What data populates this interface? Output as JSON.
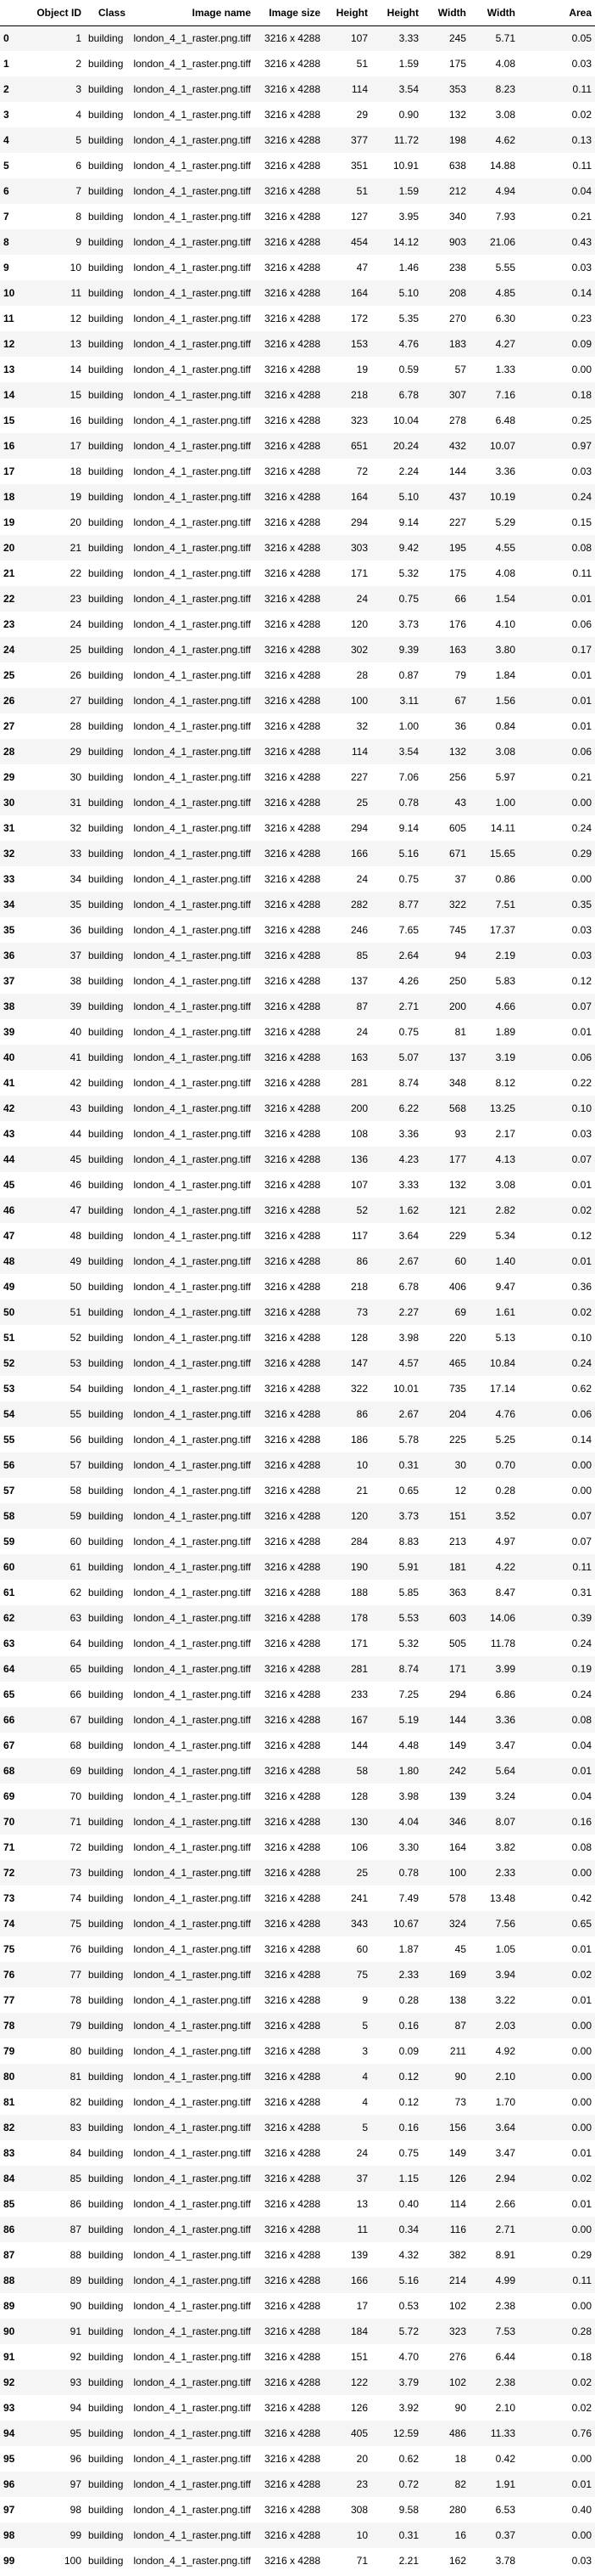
{
  "columns": [
    "",
    "Object ID",
    "Class",
    "Image name",
    "Image size",
    "Height",
    "Height",
    "Width",
    "Width",
    "Area"
  ],
  "rows": [
    [
      0,
      1,
      "building",
      "london_4_1_raster.png.tiff",
      "3216 x 4288",
      107,
      "3.33",
      245,
      "5.71",
      "0.05"
    ],
    [
      1,
      2,
      "building",
      "london_4_1_raster.png.tiff",
      "3216 x 4288",
      51,
      "1.59",
      175,
      "4.08",
      "0.03"
    ],
    [
      2,
      3,
      "building",
      "london_4_1_raster.png.tiff",
      "3216 x 4288",
      114,
      "3.54",
      353,
      "8.23",
      "0.11"
    ],
    [
      3,
      4,
      "building",
      "london_4_1_raster.png.tiff",
      "3216 x 4288",
      29,
      "0.90",
      132,
      "3.08",
      "0.02"
    ],
    [
      4,
      5,
      "building",
      "london_4_1_raster.png.tiff",
      "3216 x 4288",
      377,
      "11.72",
      198,
      "4.62",
      "0.13"
    ],
    [
      5,
      6,
      "building",
      "london_4_1_raster.png.tiff",
      "3216 x 4288",
      351,
      "10.91",
      638,
      "14.88",
      "0.11"
    ],
    [
      6,
      7,
      "building",
      "london_4_1_raster.png.tiff",
      "3216 x 4288",
      51,
      "1.59",
      212,
      "4.94",
      "0.04"
    ],
    [
      7,
      8,
      "building",
      "london_4_1_raster.png.tiff",
      "3216 x 4288",
      127,
      "3.95",
      340,
      "7.93",
      "0.21"
    ],
    [
      8,
      9,
      "building",
      "london_4_1_raster.png.tiff",
      "3216 x 4288",
      454,
      "14.12",
      903,
      "21.06",
      "0.43"
    ],
    [
      9,
      10,
      "building",
      "london_4_1_raster.png.tiff",
      "3216 x 4288",
      47,
      "1.46",
      238,
      "5.55",
      "0.03"
    ],
    [
      10,
      11,
      "building",
      "london_4_1_raster.png.tiff",
      "3216 x 4288",
      164,
      "5.10",
      208,
      "4.85",
      "0.14"
    ],
    [
      11,
      12,
      "building",
      "london_4_1_raster.png.tiff",
      "3216 x 4288",
      172,
      "5.35",
      270,
      "6.30",
      "0.23"
    ],
    [
      12,
      13,
      "building",
      "london_4_1_raster.png.tiff",
      "3216 x 4288",
      153,
      "4.76",
      183,
      "4.27",
      "0.09"
    ],
    [
      13,
      14,
      "building",
      "london_4_1_raster.png.tiff",
      "3216 x 4288",
      19,
      "0.59",
      57,
      "1.33",
      "0.00"
    ],
    [
      14,
      15,
      "building",
      "london_4_1_raster.png.tiff",
      "3216 x 4288",
      218,
      "6.78",
      307,
      "7.16",
      "0.18"
    ],
    [
      15,
      16,
      "building",
      "london_4_1_raster.png.tiff",
      "3216 x 4288",
      323,
      "10.04",
      278,
      "6.48",
      "0.25"
    ],
    [
      16,
      17,
      "building",
      "london_4_1_raster.png.tiff",
      "3216 x 4288",
      651,
      "20.24",
      432,
      "10.07",
      "0.97"
    ],
    [
      17,
      18,
      "building",
      "london_4_1_raster.png.tiff",
      "3216 x 4288",
      72,
      "2.24",
      144,
      "3.36",
      "0.03"
    ],
    [
      18,
      19,
      "building",
      "london_4_1_raster.png.tiff",
      "3216 x 4288",
      164,
      "5.10",
      437,
      "10.19",
      "0.24"
    ],
    [
      19,
      20,
      "building",
      "london_4_1_raster.png.tiff",
      "3216 x 4288",
      294,
      "9.14",
      227,
      "5.29",
      "0.15"
    ],
    [
      20,
      21,
      "building",
      "london_4_1_raster.png.tiff",
      "3216 x 4288",
      303,
      "9.42",
      195,
      "4.55",
      "0.08"
    ],
    [
      21,
      22,
      "building",
      "london_4_1_raster.png.tiff",
      "3216 x 4288",
      171,
      "5.32",
      175,
      "4.08",
      "0.11"
    ],
    [
      22,
      23,
      "building",
      "london_4_1_raster.png.tiff",
      "3216 x 4288",
      24,
      "0.75",
      66,
      "1.54",
      "0.01"
    ],
    [
      23,
      24,
      "building",
      "london_4_1_raster.png.tiff",
      "3216 x 4288",
      120,
      "3.73",
      176,
      "4.10",
      "0.06"
    ],
    [
      24,
      25,
      "building",
      "london_4_1_raster.png.tiff",
      "3216 x 4288",
      302,
      "9.39",
      163,
      "3.80",
      "0.17"
    ],
    [
      25,
      26,
      "building",
      "london_4_1_raster.png.tiff",
      "3216 x 4288",
      28,
      "0.87",
      79,
      "1.84",
      "0.01"
    ],
    [
      26,
      27,
      "building",
      "london_4_1_raster.png.tiff",
      "3216 x 4288",
      100,
      "3.11",
      67,
      "1.56",
      "0.01"
    ],
    [
      27,
      28,
      "building",
      "london_4_1_raster.png.tiff",
      "3216 x 4288",
      32,
      "1.00",
      36,
      "0.84",
      "0.01"
    ],
    [
      28,
      29,
      "building",
      "london_4_1_raster.png.tiff",
      "3216 x 4288",
      114,
      "3.54",
      132,
      "3.08",
      "0.06"
    ],
    [
      29,
      30,
      "building",
      "london_4_1_raster.png.tiff",
      "3216 x 4288",
      227,
      "7.06",
      256,
      "5.97",
      "0.21"
    ],
    [
      30,
      31,
      "building",
      "london_4_1_raster.png.tiff",
      "3216 x 4288",
      25,
      "0.78",
      43,
      "1.00",
      "0.00"
    ],
    [
      31,
      32,
      "building",
      "london_4_1_raster.png.tiff",
      "3216 x 4288",
      294,
      "9.14",
      605,
      "14.11",
      "0.24"
    ],
    [
      32,
      33,
      "building",
      "london_4_1_raster.png.tiff",
      "3216 x 4288",
      166,
      "5.16",
      671,
      "15.65",
      "0.29"
    ],
    [
      33,
      34,
      "building",
      "london_4_1_raster.png.tiff",
      "3216 x 4288",
      24,
      "0.75",
      37,
      "0.86",
      "0.00"
    ],
    [
      34,
      35,
      "building",
      "london_4_1_raster.png.tiff",
      "3216 x 4288",
      282,
      "8.77",
      322,
      "7.51",
      "0.35"
    ],
    [
      35,
      36,
      "building",
      "london_4_1_raster.png.tiff",
      "3216 x 4288",
      246,
      "7.65",
      745,
      "17.37",
      "0.03"
    ],
    [
      36,
      37,
      "building",
      "london_4_1_raster.png.tiff",
      "3216 x 4288",
      85,
      "2.64",
      94,
      "2.19",
      "0.03"
    ],
    [
      37,
      38,
      "building",
      "london_4_1_raster.png.tiff",
      "3216 x 4288",
      137,
      "4.26",
      250,
      "5.83",
      "0.12"
    ],
    [
      38,
      39,
      "building",
      "london_4_1_raster.png.tiff",
      "3216 x 4288",
      87,
      "2.71",
      200,
      "4.66",
      "0.07"
    ],
    [
      39,
      40,
      "building",
      "london_4_1_raster.png.tiff",
      "3216 x 4288",
      24,
      "0.75",
      81,
      "1.89",
      "0.01"
    ],
    [
      40,
      41,
      "building",
      "london_4_1_raster.png.tiff",
      "3216 x 4288",
      163,
      "5.07",
      137,
      "3.19",
      "0.06"
    ],
    [
      41,
      42,
      "building",
      "london_4_1_raster.png.tiff",
      "3216 x 4288",
      281,
      "8.74",
      348,
      "8.12",
      "0.22"
    ],
    [
      42,
      43,
      "building",
      "london_4_1_raster.png.tiff",
      "3216 x 4288",
      200,
      "6.22",
      568,
      "13.25",
      "0.10"
    ],
    [
      43,
      44,
      "building",
      "london_4_1_raster.png.tiff",
      "3216 x 4288",
      108,
      "3.36",
      93,
      "2.17",
      "0.03"
    ],
    [
      44,
      45,
      "building",
      "london_4_1_raster.png.tiff",
      "3216 x 4288",
      136,
      "4.23",
      177,
      "4.13",
      "0.07"
    ],
    [
      45,
      46,
      "building",
      "london_4_1_raster.png.tiff",
      "3216 x 4288",
      107,
      "3.33",
      132,
      "3.08",
      "0.01"
    ],
    [
      46,
      47,
      "building",
      "london_4_1_raster.png.tiff",
      "3216 x 4288",
      52,
      "1.62",
      121,
      "2.82",
      "0.02"
    ],
    [
      47,
      48,
      "building",
      "london_4_1_raster.png.tiff",
      "3216 x 4288",
      117,
      "3.64",
      229,
      "5.34",
      "0.12"
    ],
    [
      48,
      49,
      "building",
      "london_4_1_raster.png.tiff",
      "3216 x 4288",
      86,
      "2.67",
      60,
      "1.40",
      "0.01"
    ],
    [
      49,
      50,
      "building",
      "london_4_1_raster.png.tiff",
      "3216 x 4288",
      218,
      "6.78",
      406,
      "9.47",
      "0.36"
    ],
    [
      50,
      51,
      "building",
      "london_4_1_raster.png.tiff",
      "3216 x 4288",
      73,
      "2.27",
      69,
      "1.61",
      "0.02"
    ],
    [
      51,
      52,
      "building",
      "london_4_1_raster.png.tiff",
      "3216 x 4288",
      128,
      "3.98",
      220,
      "5.13",
      "0.10"
    ],
    [
      52,
      53,
      "building",
      "london_4_1_raster.png.tiff",
      "3216 x 4288",
      147,
      "4.57",
      465,
      "10.84",
      "0.24"
    ],
    [
      53,
      54,
      "building",
      "london_4_1_raster.png.tiff",
      "3216 x 4288",
      322,
      "10.01",
      735,
      "17.14",
      "0.62"
    ],
    [
      54,
      55,
      "building",
      "london_4_1_raster.png.tiff",
      "3216 x 4288",
      86,
      "2.67",
      204,
      "4.76",
      "0.06"
    ],
    [
      55,
      56,
      "building",
      "london_4_1_raster.png.tiff",
      "3216 x 4288",
      186,
      "5.78",
      225,
      "5.25",
      "0.14"
    ],
    [
      56,
      57,
      "building",
      "london_4_1_raster.png.tiff",
      "3216 x 4288",
      10,
      "0.31",
      30,
      "0.70",
      "0.00"
    ],
    [
      57,
      58,
      "building",
      "london_4_1_raster.png.tiff",
      "3216 x 4288",
      21,
      "0.65",
      12,
      "0.28",
      "0.00"
    ],
    [
      58,
      59,
      "building",
      "london_4_1_raster.png.tiff",
      "3216 x 4288",
      120,
      "3.73",
      151,
      "3.52",
      "0.07"
    ],
    [
      59,
      60,
      "building",
      "london_4_1_raster.png.tiff",
      "3216 x 4288",
      284,
      "8.83",
      213,
      "4.97",
      "0.07"
    ],
    [
      60,
      61,
      "building",
      "london_4_1_raster.png.tiff",
      "3216 x 4288",
      190,
      "5.91",
      181,
      "4.22",
      "0.11"
    ],
    [
      61,
      62,
      "building",
      "london_4_1_raster.png.tiff",
      "3216 x 4288",
      188,
      "5.85",
      363,
      "8.47",
      "0.31"
    ],
    [
      62,
      63,
      "building",
      "london_4_1_raster.png.tiff",
      "3216 x 4288",
      178,
      "5.53",
      603,
      "14.06",
      "0.39"
    ],
    [
      63,
      64,
      "building",
      "london_4_1_raster.png.tiff",
      "3216 x 4288",
      171,
      "5.32",
      505,
      "11.78",
      "0.24"
    ],
    [
      64,
      65,
      "building",
      "london_4_1_raster.png.tiff",
      "3216 x 4288",
      281,
      "8.74",
      171,
      "3.99",
      "0.19"
    ],
    [
      65,
      66,
      "building",
      "london_4_1_raster.png.tiff",
      "3216 x 4288",
      233,
      "7.25",
      294,
      "6.86",
      "0.24"
    ],
    [
      66,
      67,
      "building",
      "london_4_1_raster.png.tiff",
      "3216 x 4288",
      167,
      "5.19",
      144,
      "3.36",
      "0.08"
    ],
    [
      67,
      68,
      "building",
      "london_4_1_raster.png.tiff",
      "3216 x 4288",
      144,
      "4.48",
      149,
      "3.47",
      "0.04"
    ],
    [
      68,
      69,
      "building",
      "london_4_1_raster.png.tiff",
      "3216 x 4288",
      58,
      "1.80",
      242,
      "5.64",
      "0.01"
    ],
    [
      69,
      70,
      "building",
      "london_4_1_raster.png.tiff",
      "3216 x 4288",
      128,
      "3.98",
      139,
      "3.24",
      "0.04"
    ],
    [
      70,
      71,
      "building",
      "london_4_1_raster.png.tiff",
      "3216 x 4288",
      130,
      "4.04",
      346,
      "8.07",
      "0.16"
    ],
    [
      71,
      72,
      "building",
      "london_4_1_raster.png.tiff",
      "3216 x 4288",
      106,
      "3.30",
      164,
      "3.82",
      "0.08"
    ],
    [
      72,
      73,
      "building",
      "london_4_1_raster.png.tiff",
      "3216 x 4288",
      25,
      "0.78",
      100,
      "2.33",
      "0.00"
    ],
    [
      73,
      74,
      "building",
      "london_4_1_raster.png.tiff",
      "3216 x 4288",
      241,
      "7.49",
      578,
      "13.48",
      "0.42"
    ],
    [
      74,
      75,
      "building",
      "london_4_1_raster.png.tiff",
      "3216 x 4288",
      343,
      "10.67",
      324,
      "7.56",
      "0.65"
    ],
    [
      75,
      76,
      "building",
      "london_4_1_raster.png.tiff",
      "3216 x 4288",
      60,
      "1.87",
      45,
      "1.05",
      "0.01"
    ],
    [
      76,
      77,
      "building",
      "london_4_1_raster.png.tiff",
      "3216 x 4288",
      75,
      "2.33",
      169,
      "3.94",
      "0.02"
    ],
    [
      77,
      78,
      "building",
      "london_4_1_raster.png.tiff",
      "3216 x 4288",
      9,
      "0.28",
      138,
      "3.22",
      "0.01"
    ],
    [
      78,
      79,
      "building",
      "london_4_1_raster.png.tiff",
      "3216 x 4288",
      5,
      "0.16",
      87,
      "2.03",
      "0.00"
    ],
    [
      79,
      80,
      "building",
      "london_4_1_raster.png.tiff",
      "3216 x 4288",
      3,
      "0.09",
      211,
      "4.92",
      "0.00"
    ],
    [
      80,
      81,
      "building",
      "london_4_1_raster.png.tiff",
      "3216 x 4288",
      4,
      "0.12",
      90,
      "2.10",
      "0.00"
    ],
    [
      81,
      82,
      "building",
      "london_4_1_raster.png.tiff",
      "3216 x 4288",
      4,
      "0.12",
      73,
      "1.70",
      "0.00"
    ],
    [
      82,
      83,
      "building",
      "london_4_1_raster.png.tiff",
      "3216 x 4288",
      5,
      "0.16",
      156,
      "3.64",
      "0.00"
    ],
    [
      83,
      84,
      "building",
      "london_4_1_raster.png.tiff",
      "3216 x 4288",
      24,
      "0.75",
      149,
      "3.47",
      "0.01"
    ],
    [
      84,
      85,
      "building",
      "london_4_1_raster.png.tiff",
      "3216 x 4288",
      37,
      "1.15",
      126,
      "2.94",
      "0.02"
    ],
    [
      85,
      86,
      "building",
      "london_4_1_raster.png.tiff",
      "3216 x 4288",
      13,
      "0.40",
      114,
      "2.66",
      "0.01"
    ],
    [
      86,
      87,
      "building",
      "london_4_1_raster.png.tiff",
      "3216 x 4288",
      11,
      "0.34",
      116,
      "2.71",
      "0.00"
    ],
    [
      87,
      88,
      "building",
      "london_4_1_raster.png.tiff",
      "3216 x 4288",
      139,
      "4.32",
      382,
      "8.91",
      "0.29"
    ],
    [
      88,
      89,
      "building",
      "london_4_1_raster.png.tiff",
      "3216 x 4288",
      166,
      "5.16",
      214,
      "4.99",
      "0.11"
    ],
    [
      89,
      90,
      "building",
      "london_4_1_raster.png.tiff",
      "3216 x 4288",
      17,
      "0.53",
      102,
      "2.38",
      "0.00"
    ],
    [
      90,
      91,
      "building",
      "london_4_1_raster.png.tiff",
      "3216 x 4288",
      184,
      "5.72",
      323,
      "7.53",
      "0.28"
    ],
    [
      91,
      92,
      "building",
      "london_4_1_raster.png.tiff",
      "3216 x 4288",
      151,
      "4.70",
      276,
      "6.44",
      "0.18"
    ],
    [
      92,
      93,
      "building",
      "london_4_1_raster.png.tiff",
      "3216 x 4288",
      122,
      "3.79",
      102,
      "2.38",
      "0.02"
    ],
    [
      93,
      94,
      "building",
      "london_4_1_raster.png.tiff",
      "3216 x 4288",
      126,
      "3.92",
      90,
      "2.10",
      "0.02"
    ],
    [
      94,
      95,
      "building",
      "london_4_1_raster.png.tiff",
      "3216 x 4288",
      405,
      "12.59",
      486,
      "11.33",
      "0.76"
    ],
    [
      95,
      96,
      "building",
      "london_4_1_raster.png.tiff",
      "3216 x 4288",
      20,
      "0.62",
      18,
      "0.42",
      "0.00"
    ],
    [
      96,
      97,
      "building",
      "london_4_1_raster.png.tiff",
      "3216 x 4288",
      23,
      "0.72",
      82,
      "1.91",
      "0.01"
    ],
    [
      97,
      98,
      "building",
      "london_4_1_raster.png.tiff",
      "3216 x 4288",
      308,
      "9.58",
      280,
      "6.53",
      "0.40"
    ],
    [
      98,
      99,
      "building",
      "london_4_1_raster.png.tiff",
      "3216 x 4288",
      10,
      "0.31",
      16,
      "0.37",
      "0.00"
    ],
    [
      99,
      100,
      "building",
      "london_4_1_raster.png.tiff",
      "3216 x 4288",
      71,
      "2.21",
      162,
      "3.78",
      "0.03"
    ]
  ]
}
